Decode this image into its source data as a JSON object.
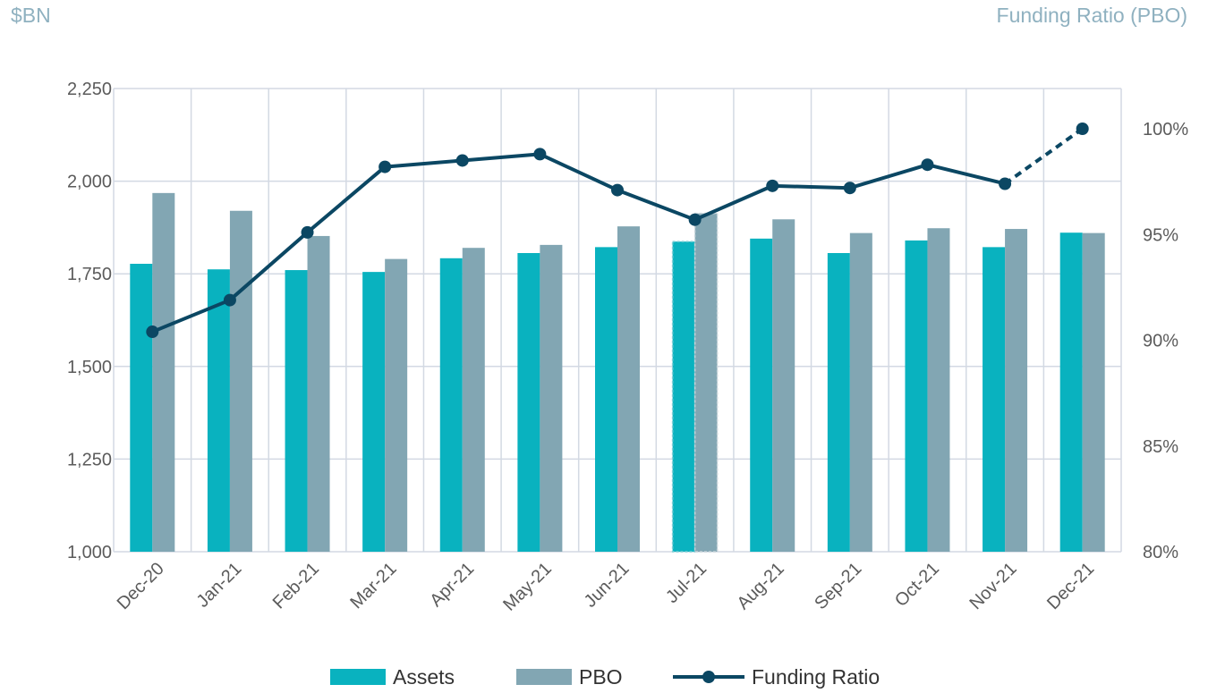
{
  "left_axis_unit": "$BN",
  "right_axis_unit": "Funding Ratio (PBO)",
  "legend": {
    "assets_label": "Assets",
    "pbo_label": "PBO",
    "ratio_label": "Funding Ratio"
  },
  "colors": {
    "assets": "#09b2bf",
    "pbo": "#82a6b3",
    "ratio": "#0b4763",
    "grid": "#d3d9e3"
  },
  "chart_data": {
    "type": "bar",
    "categories": [
      "Dec-20",
      "Jan-21",
      "Feb-21",
      "Mar-21",
      "Apr-21",
      "May-21",
      "Jun-21",
      "Jul-21",
      "Aug-21",
      "Sep-21",
      "Oct-21",
      "Nov-21",
      "Dec-21"
    ],
    "series": [
      {
        "name": "Assets",
        "type": "bar",
        "axis": "left",
        "values": [
          1777,
          1762,
          1760,
          1755,
          1792,
          1806,
          1822,
          1837,
          1845,
          1806,
          1840,
          1822,
          1861
        ]
      },
      {
        "name": "PBO",
        "type": "bar",
        "axis": "left",
        "values": [
          1968,
          1920,
          1852,
          1790,
          1820,
          1828,
          1878,
          1913,
          1897,
          1860,
          1873,
          1871,
          1860
        ]
      },
      {
        "name": "Funding Ratio",
        "type": "line",
        "axis": "right",
        "values": [
          90.4,
          91.9,
          95.1,
          98.2,
          98.5,
          98.8,
          97.1,
          95.7,
          97.3,
          97.2,
          98.3,
          97.4,
          100.0
        ]
      }
    ],
    "y_left": {
      "ticks": [
        "1,000",
        "1,250",
        "1,500",
        "1,750",
        "2,000",
        "2,250"
      ],
      "lim": [
        1000,
        2250
      ]
    },
    "y_right": {
      "ticks": [
        "80%",
        "85%",
        "90%",
        "95%",
        "100%"
      ],
      "lim": [
        80,
        102
      ]
    },
    "highlighted_category": "Jul-21",
    "dashed_segment": [
      "Nov-21",
      "Dec-21"
    ],
    "grid": true,
    "legend_position": "bottom"
  }
}
